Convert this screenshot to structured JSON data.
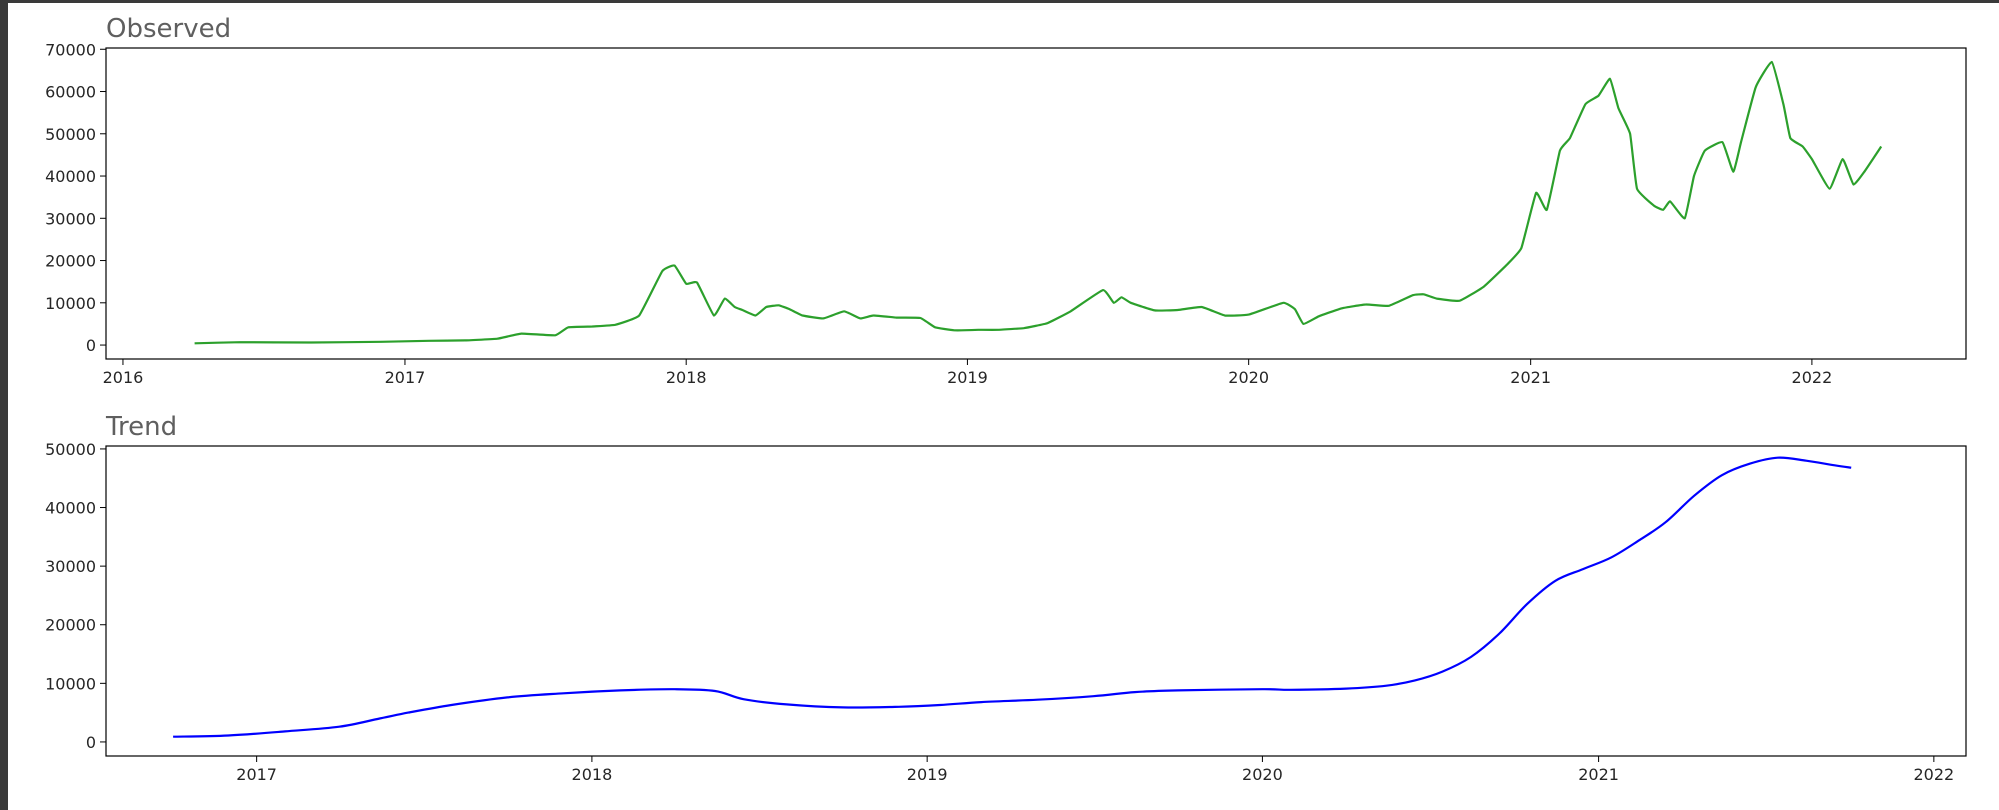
{
  "chart_data": [
    {
      "type": "line",
      "title": "Observed",
      "color": "#2ca02c",
      "xlabel": "",
      "ylabel": "",
      "xlim": [
        "2015-12-10",
        "2022-07-20"
      ],
      "ylim": [
        -3300,
        70300
      ],
      "x_ticks": [
        "2016",
        "2017",
        "2018",
        "2019",
        "2020",
        "2021",
        "2022"
      ],
      "y_ticks": [
        "0",
        "10000",
        "20000",
        "30000",
        "40000",
        "50000",
        "60000",
        "70000"
      ],
      "series": [
        {
          "x": [
            "2016-04-03",
            "2016-06-01",
            "2016-09-01",
            "2016-12-01",
            "2017-02-01",
            "2017-03-20",
            "2017-05-01",
            "2017-06-01",
            "2017-07-15",
            "2017-08-01",
            "2017-09-01",
            "2017-10-01",
            "2017-11-01",
            "2017-12-01",
            "2017-12-17",
            "2018-01-01",
            "2018-01-15",
            "2018-02-06",
            "2018-02-20",
            "2018-03-05",
            "2018-03-15",
            "2018-04-01",
            "2018-04-15",
            "2018-05-01",
            "2018-05-15",
            "2018-06-01",
            "2018-06-28",
            "2018-07-25",
            "2018-08-15",
            "2018-09-01",
            "2018-10-01",
            "2018-11-01",
            "2018-11-20",
            "2018-12-15",
            "2019-01-15",
            "2019-02-10",
            "2019-03-15",
            "2019-04-15",
            "2019-05-15",
            "2019-06-26",
            "2019-07-10",
            "2019-07-20",
            "2019-08-01",
            "2019-09-01",
            "2019-10-01",
            "2019-11-01",
            "2019-12-01",
            "2020-01-01",
            "2020-02-15",
            "2020-03-01",
            "2020-03-12",
            "2020-04-01",
            "2020-05-01",
            "2020-06-01",
            "2020-07-01",
            "2020-08-01",
            "2020-08-15",
            "2020-09-01",
            "2020-10-01",
            "2020-11-01",
            "2020-12-01",
            "2020-12-20",
            "2021-01-08",
            "2021-01-22",
            "2021-02-08",
            "2021-02-21",
            "2021-03-13",
            "2021-03-30",
            "2021-04-14",
            "2021-04-25",
            "2021-05-10",
            "2021-05-19",
            "2021-06-10",
            "2021-06-22",
            "2021-07-01",
            "2021-07-20",
            "2021-08-01",
            "2021-08-15",
            "2021-09-07",
            "2021-09-21",
            "2021-10-01",
            "2021-10-20",
            "2021-11-10",
            "2021-11-25",
            "2021-12-04",
            "2021-12-20",
            "2022-01-01",
            "2022-01-24",
            "2022-02-10",
            "2022-02-24",
            "2022-03-10",
            "2022-04-01"
          ],
          "values": [
            420,
            670,
            600,
            780,
            1000,
            1100,
            1500,
            2700,
            2300,
            4200,
            4400,
            4800,
            7000,
            17500,
            18800,
            14500,
            14800,
            7000,
            11000,
            9000,
            8300,
            7000,
            9000,
            9400,
            8500,
            7000,
            6300,
            8000,
            6300,
            7000,
            6500,
            6400,
            4200,
            3500,
            3600,
            3600,
            4000,
            5200,
            8000,
            13000,
            10000,
            11300,
            10000,
            8200,
            8300,
            9000,
            7000,
            7200,
            10000,
            8500,
            5000,
            6800,
            8700,
            9600,
            9300,
            11800,
            12000,
            11000,
            10500,
            13800,
            19000,
            23000,
            36000,
            32000,
            46000,
            49000,
            57000,
            59000,
            63000,
            56000,
            50000,
            37000,
            33000,
            32000,
            34000,
            30000,
            40000,
            46000,
            48000,
            41000,
            48000,
            61000,
            67000,
            57000,
            49000,
            47000,
            44000,
            37000,
            44000,
            38000,
            41000,
            47000
          ]
        }
      ]
    },
    {
      "type": "line",
      "title": "Trend",
      "color": "#0000ff",
      "xlabel": "",
      "ylabel": "",
      "xlim": [
        "2016-07-21",
        "2022-02-05"
      ],
      "ylim": [
        -2400,
        50500
      ],
      "x_ticks": [
        "2017",
        "2018",
        "2019",
        "2020",
        "2021",
        "2022"
      ],
      "y_ticks": [
        "0",
        "10000",
        "20000",
        "30000",
        "40000",
        "50000"
      ],
      "series": [
        {
          "x": [
            "2016-10-02",
            "2016-12-01",
            "2017-02-01",
            "2017-04-01",
            "2017-05-15",
            "2017-06-15",
            "2017-08-01",
            "2017-10-01",
            "2017-12-01",
            "2018-02-01",
            "2018-04-01",
            "2018-05-15",
            "2018-06-15",
            "2018-08-01",
            "2018-10-01",
            "2018-12-01",
            "2019-01-15",
            "2019-03-01",
            "2019-05-01",
            "2019-07-01",
            "2019-08-15",
            "2019-10-01",
            "2020-01-01",
            "2020-02-01",
            "2020-04-01",
            "2020-05-15",
            "2020-06-15",
            "2020-07-15",
            "2020-08-15",
            "2020-09-15",
            "2020-10-15",
            "2020-11-15",
            "2020-12-15",
            "2021-01-15",
            "2021-02-15",
            "2021-03-15",
            "2021-04-15",
            "2021-05-15",
            "2021-06-15",
            "2021-07-15",
            "2021-08-15",
            "2021-09-15",
            "2021-10-03"
          ],
          "values": [
            900,
            1100,
            1800,
            2600,
            4000,
            5000,
            6300,
            7600,
            8300,
            8800,
            9000,
            8700,
            7300,
            6400,
            5900,
            6000,
            6300,
            6800,
            7200,
            7800,
            8500,
            8800,
            9000,
            8900,
            9100,
            9600,
            10500,
            12000,
            14500,
            18500,
            23500,
            27500,
            29500,
            31500,
            34500,
            37500,
            42000,
            45500,
            47500,
            48500,
            48000,
            47200,
            46800
          ]
        }
      ]
    }
  ]
}
